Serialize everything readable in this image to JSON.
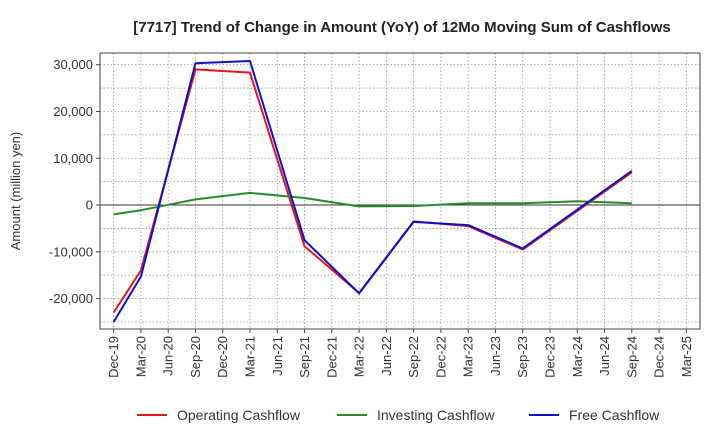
{
  "chart_data": {
    "type": "line",
    "title": "[7717]  Trend of Change in Amount (YoY) of 12Mo Moving Sum of Cashflows",
    "xlabel": "",
    "ylabel": "Amount (million yen)",
    "ylim": [
      -26500,
      32500
    ],
    "yticks": [
      30000,
      20000,
      10000,
      0,
      -10000,
      -20000
    ],
    "ytick_labels": [
      "30,000",
      "20,000",
      "10,000",
      "0",
      "-10,000",
      "-20,000"
    ],
    "categories": [
      "Dec-19",
      "Mar-20",
      "Jun-20",
      "Sep-20",
      "Dec-20",
      "Mar-21",
      "Jun-21",
      "Sep-21",
      "Dec-21",
      "Mar-22",
      "Jun-22",
      "Sep-22",
      "Dec-22",
      "Mar-23",
      "Jun-23",
      "Sep-23",
      "Dec-23",
      "Mar-24",
      "Jun-24",
      "Sep-24",
      "Dec-24",
      "Mar-25"
    ],
    "grid": true,
    "legend_position": "bottom",
    "series": [
      {
        "name": "Operating Cashflow",
        "color": "#e8141c",
        "values": [
          -23000,
          -14000,
          null,
          29000,
          null,
          28300,
          null,
          -8800,
          null,
          -18800,
          null,
          -3500,
          null,
          -4500,
          null,
          -9500,
          null,
          null,
          null,
          7000,
          null,
          null
        ]
      },
      {
        "name": "Investing Cashflow",
        "color": "#2a8a2a",
        "values": [
          -2000,
          -1100,
          null,
          1200,
          null,
          2600,
          null,
          1500,
          null,
          -300,
          null,
          -200,
          null,
          400,
          null,
          400,
          null,
          800,
          null,
          400,
          null,
          null
        ]
      },
      {
        "name": "Free Cashflow",
        "color": "#0c12c4",
        "values": [
          -25000,
          -15300,
          null,
          30300,
          null,
          30800,
          null,
          -7500,
          null,
          -18900,
          null,
          -3600,
          null,
          -4300,
          null,
          -9300,
          null,
          null,
          null,
          7300,
          null,
          null
        ]
      }
    ]
  }
}
